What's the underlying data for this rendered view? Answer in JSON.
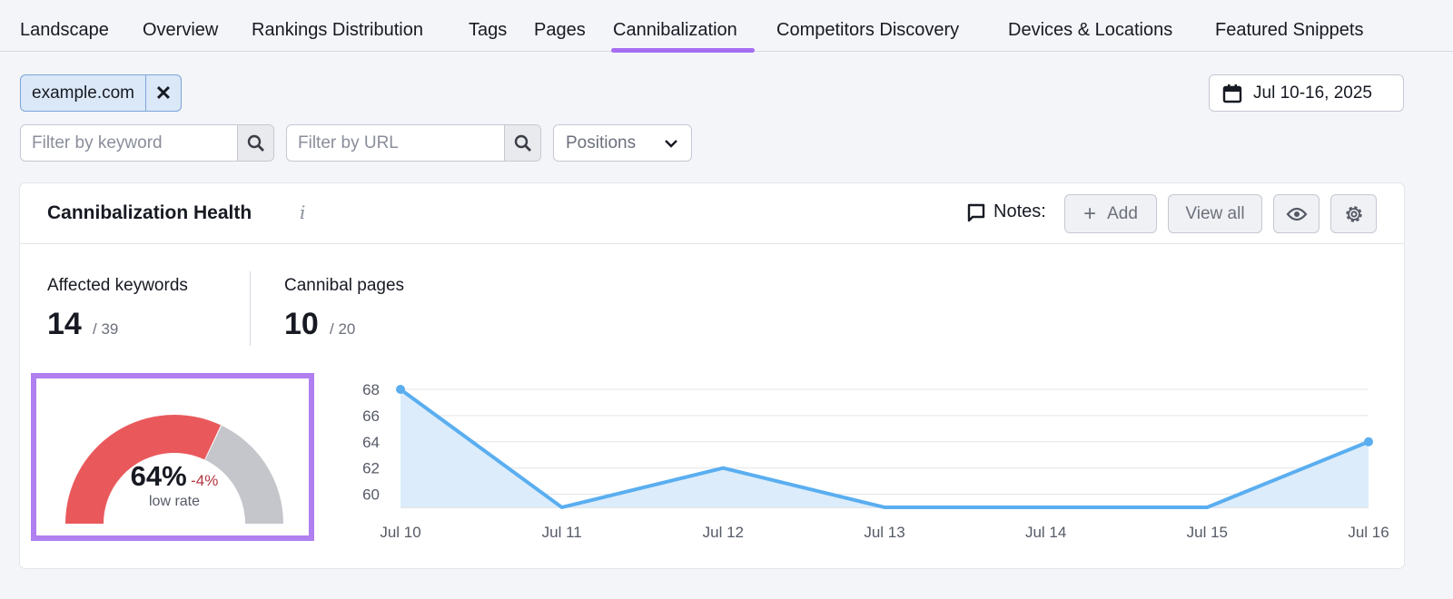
{
  "tabs": [
    {
      "label": "Landscape"
    },
    {
      "label": "Overview"
    },
    {
      "label": "Rankings Distribution"
    },
    {
      "label": "Tags"
    },
    {
      "label": "Pages"
    },
    {
      "label": "Cannibalization",
      "active": true
    },
    {
      "label": "Competitors Discovery"
    },
    {
      "label": "Devices & Locations"
    },
    {
      "label": "Featured Snippets"
    }
  ],
  "domain_chip": {
    "label": "example.com",
    "remove_icon": "close-icon"
  },
  "date_range": {
    "label": "Jul 10-16, 2025",
    "icon": "calendar-icon"
  },
  "filters": {
    "keyword_placeholder": "Filter by keyword",
    "url_placeholder": "Filter by URL",
    "positions_label": "Positions"
  },
  "card": {
    "title": "Cannibalization Health",
    "info": "i",
    "notes_label": "Notes:",
    "add_label": "Add",
    "view_all_label": "View all",
    "metrics": [
      {
        "label": "Affected keywords",
        "value": "14",
        "total": "/ 39"
      },
      {
        "label": "Cannibal pages",
        "value": "10",
        "total": "/ 20"
      }
    ],
    "gauge": {
      "value_label": "64%",
      "value": 64,
      "change": "-4%",
      "caption": "low rate",
      "fill_color": "#e9595c",
      "rest_color": "#c4c6cc",
      "change_color": "#b3363f"
    }
  },
  "accent": "#a56ef2",
  "chart_data": {
    "type": "area",
    "categories": [
      "Jul 10",
      "Jul 11",
      "Jul 12",
      "Jul 13",
      "Jul 14",
      "Jul 15",
      "Jul 16"
    ],
    "values": [
      68,
      59,
      62,
      59,
      59,
      59,
      64
    ],
    "yticks": [
      "68",
      "66",
      "64",
      "62",
      "60"
    ],
    "ylim": [
      59,
      68
    ],
    "grid": true,
    "line_color": "#5aaef0",
    "fill_color": "#dcecfb"
  }
}
